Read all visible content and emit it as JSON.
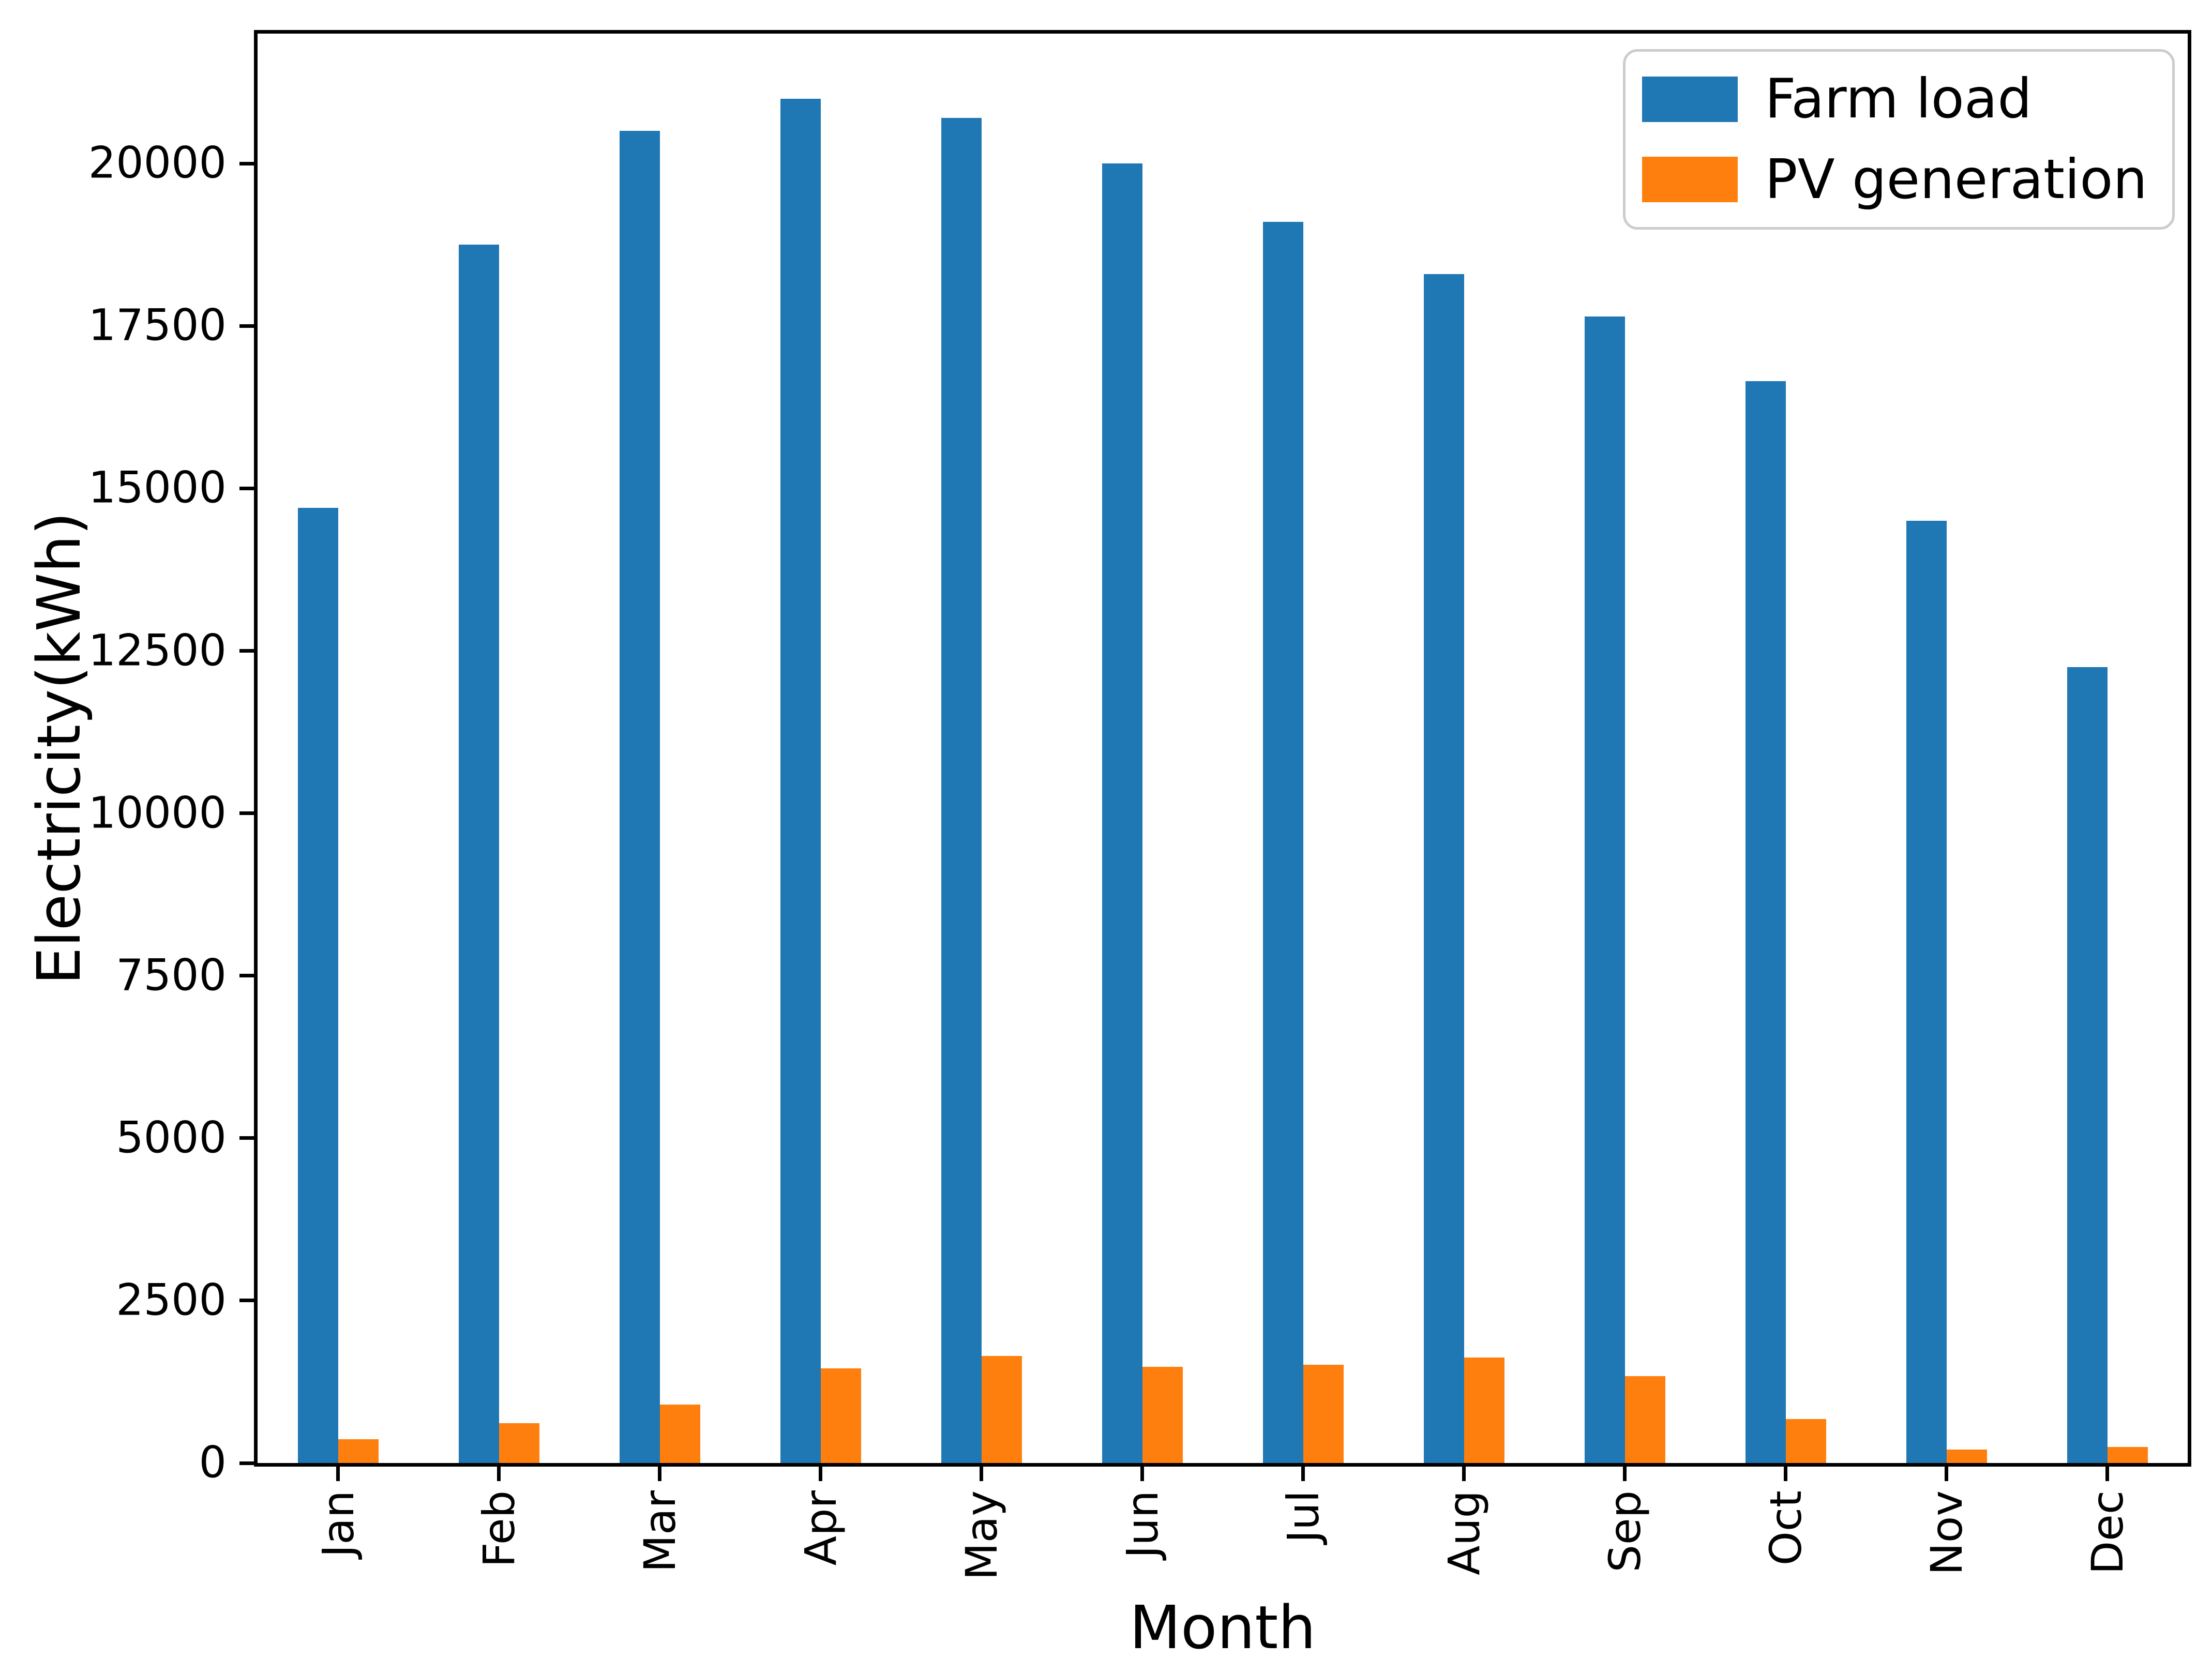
{
  "figure": {
    "background": "#ffffff"
  },
  "chart_data": {
    "type": "bar",
    "title": "",
    "xlabel": "Month",
    "ylabel": "Electricity(kWh)",
    "categories": [
      "Jan",
      "Feb",
      "Mar",
      "Apr",
      "May",
      "Jun",
      "Jul",
      "Aug",
      "Sep",
      "Oct",
      "Nov",
      "Dec"
    ],
    "series": [
      {
        "name": "Farm load",
        "color": "#1f77b4",
        "values": [
          14700,
          18750,
          20500,
          21000,
          20700,
          20000,
          19100,
          18300,
          17650,
          16650,
          14500,
          12250
        ]
      },
      {
        "name": "PV generation",
        "color": "#ff7f0e",
        "values": [
          370,
          610,
          900,
          1460,
          1650,
          1480,
          1510,
          1620,
          1340,
          680,
          210,
          250
        ]
      }
    ],
    "yticks": [
      0,
      2500,
      5000,
      7500,
      10000,
      12500,
      15000,
      17500,
      20000
    ],
    "ylim": [
      0,
      22000
    ],
    "grid": false,
    "legend_position": "upper right",
    "axis_color": "#000000",
    "legend_border_color": "#cccccc",
    "bar_width_fraction": 0.25
  }
}
